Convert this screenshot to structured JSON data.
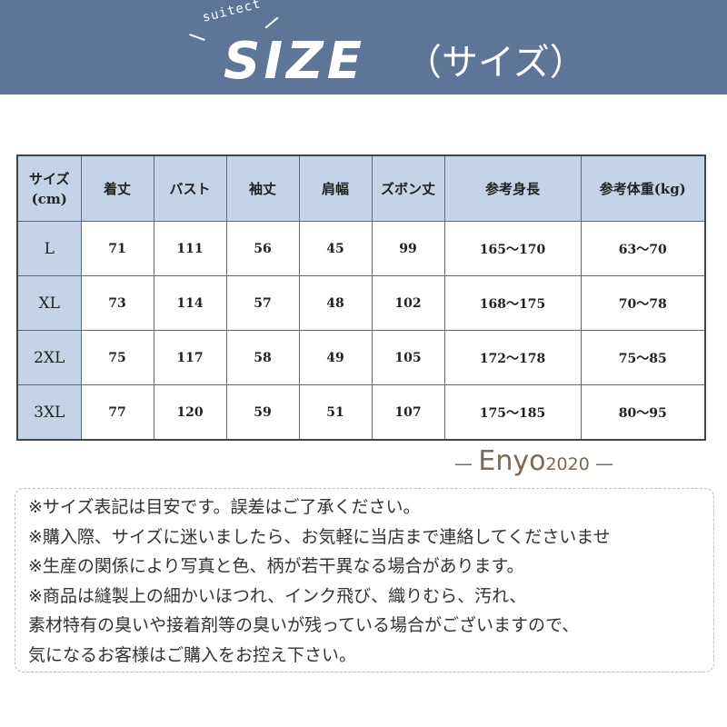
{
  "banner": {
    "logo_small": "suitect",
    "logo_big": "SIZE",
    "logo_kana": "（サイズ）",
    "color": "#5d7596"
  },
  "table": {
    "header_color": "#c4d4e8",
    "headers": [
      "サイズ\n(cm)",
      "着丈",
      "バスト",
      "袖丈",
      "肩幅",
      "ズボン丈",
      "参考身長",
      "参考体重(kg)"
    ],
    "rows": [
      [
        "L",
        "71",
        "111",
        "56",
        "45",
        "99",
        "165〜170",
        "63〜70"
      ],
      [
        "XL",
        "73",
        "114",
        "57",
        "48",
        "102",
        "168〜175",
        "70〜78"
      ],
      [
        "2XL",
        "75",
        "117",
        "58",
        "49",
        "105",
        "172〜178",
        "75〜85"
      ],
      [
        "3XL",
        "77",
        "120",
        "59",
        "51",
        "107",
        "175〜185",
        "80〜95"
      ]
    ]
  },
  "watermark": {
    "name": "Enyo",
    "year": "2020"
  },
  "notes": [
    "※サイズ表記は目安です。誤差はご了承ください。",
    "※購入際、サイズに迷いましたら、お気軽に当店まで連絡してくださいませ",
    "※生産の関係により写真と色、柄が若干異なる場合があります。",
    "※商品は縫製上の細かいほつれ、インク飛び、織りむら、汚れ、",
    "素材特有の臭いや接着剤等の臭いが残っている場合がございますので、",
    "気になるお客様はご購入をお控え下さい。"
  ]
}
